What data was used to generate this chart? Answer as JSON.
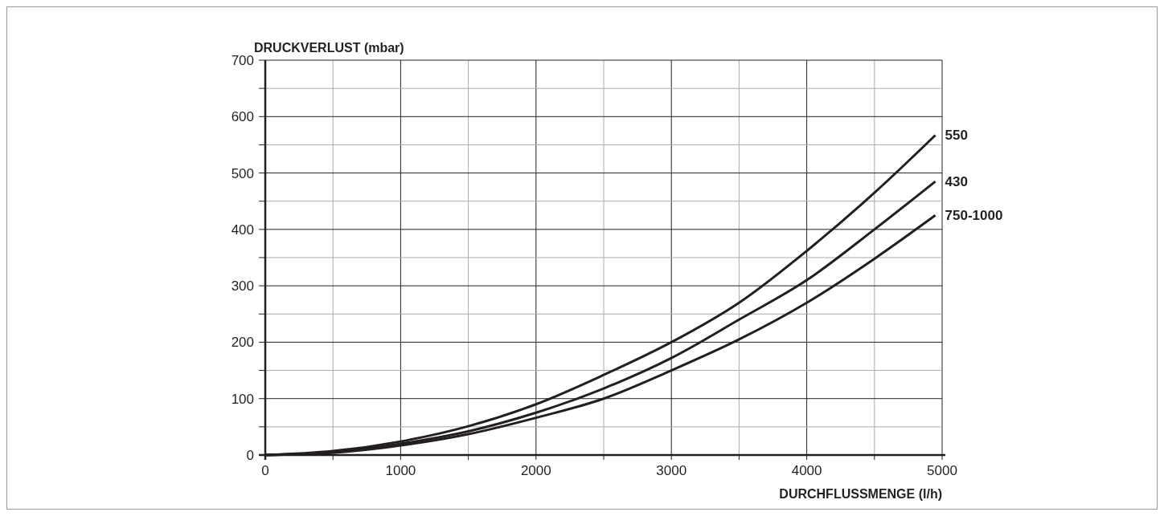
{
  "chart_data": {
    "type": "line",
    "xlabel": "DURCHFLUSSMENGE (l/h)",
    "ylabel": "DRUCKVERLUST (mbar)",
    "xlim": [
      0,
      5000
    ],
    "ylim": [
      0,
      700
    ],
    "xticks": [
      0,
      {
        "value": 500,
        "label": null
      },
      1000,
      {
        "value": 1500,
        "label": null
      },
      2000,
      {
        "value": 2500,
        "label": null
      },
      3000,
      {
        "value": 3500,
        "label": null
      },
      4000,
      {
        "value": 4500,
        "label": null
      },
      5000
    ],
    "yticks": [
      0,
      {
        "value": 50,
        "label": null
      },
      100,
      {
        "value": 150,
        "label": null
      },
      200,
      {
        "value": 250,
        "label": null
      },
      300,
      {
        "value": 350,
        "label": null
      },
      400,
      {
        "value": 450,
        "label": null
      },
      500,
      {
        "value": 550,
        "label": null
      },
      600,
      {
        "value": 650,
        "label": null
      },
      700
    ],
    "grid": true,
    "legend": false,
    "marker": "none",
    "line_style": "solid",
    "x": [
      0,
      500,
      1000,
      1500,
      2000,
      2500,
      3000,
      3500,
      4000,
      4500,
      4950
    ],
    "series": [
      {
        "name": "550",
        "color": "#231f20",
        "values": [
          0,
          7,
          24,
          51,
          90,
          142,
          200,
          270,
          362,
          465,
          567
        ]
      },
      {
        "name": "430",
        "color": "#231f20",
        "values": [
          0,
          5,
          20,
          42,
          75,
          118,
          172,
          240,
          310,
          400,
          485
        ]
      },
      {
        "name": "750-1000",
        "color": "#231f20",
        "values": [
          0,
          4,
          17,
          37,
          66,
          100,
          150,
          205,
          270,
          348,
          425
        ]
      }
    ]
  }
}
